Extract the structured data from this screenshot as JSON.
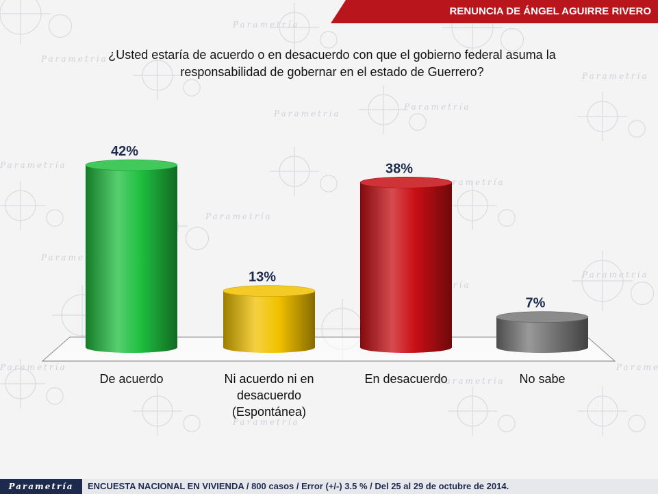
{
  "header": {
    "title": "RENUNCIA DE ÁNGEL AGUIRRE RIVERO"
  },
  "chart_data": {
    "type": "bar",
    "title": "¿Usted estaría de acuerdo o en desacuerdo con que el gobierno federal asuma la responsabilidad de gobernar en el estado de Guerrero?",
    "title_lines": [
      "¿Usted estaría de acuerdo o en desacuerdo con que el gobierno federal asuma la",
      "responsabilidad de gobernar en el estado de Guerrero?"
    ],
    "categories": [
      "De acuerdo",
      "Ni acuerdo ni en desacuerdo (Espontánea)",
      "En desacuerdo",
      "No sabe"
    ],
    "category_lines": [
      [
        "De acuerdo"
      ],
      [
        "Ni acuerdo ni en",
        "desacuerdo",
        "(Espontánea)"
      ],
      [
        "En desacuerdo"
      ],
      [
        "No sabe"
      ]
    ],
    "values": [
      42,
      13,
      38,
      7
    ],
    "data_labels": [
      "42%",
      "13%",
      "38%",
      "7%"
    ],
    "colors": [
      "#1fbf3f",
      "#f2c200",
      "#c80f14",
      "#777777"
    ],
    "ylim": [
      0,
      42
    ],
    "grid": false,
    "legend": "none"
  },
  "footer": {
    "logo": "Parametría",
    "note": "ENCUESTA NACIONAL EN VIVIENDA / 800 casos / Error (+/-) 3.5 % / Del 25 al 29 de octubre de 2014."
  },
  "background": {
    "watermark": "Parametría"
  }
}
